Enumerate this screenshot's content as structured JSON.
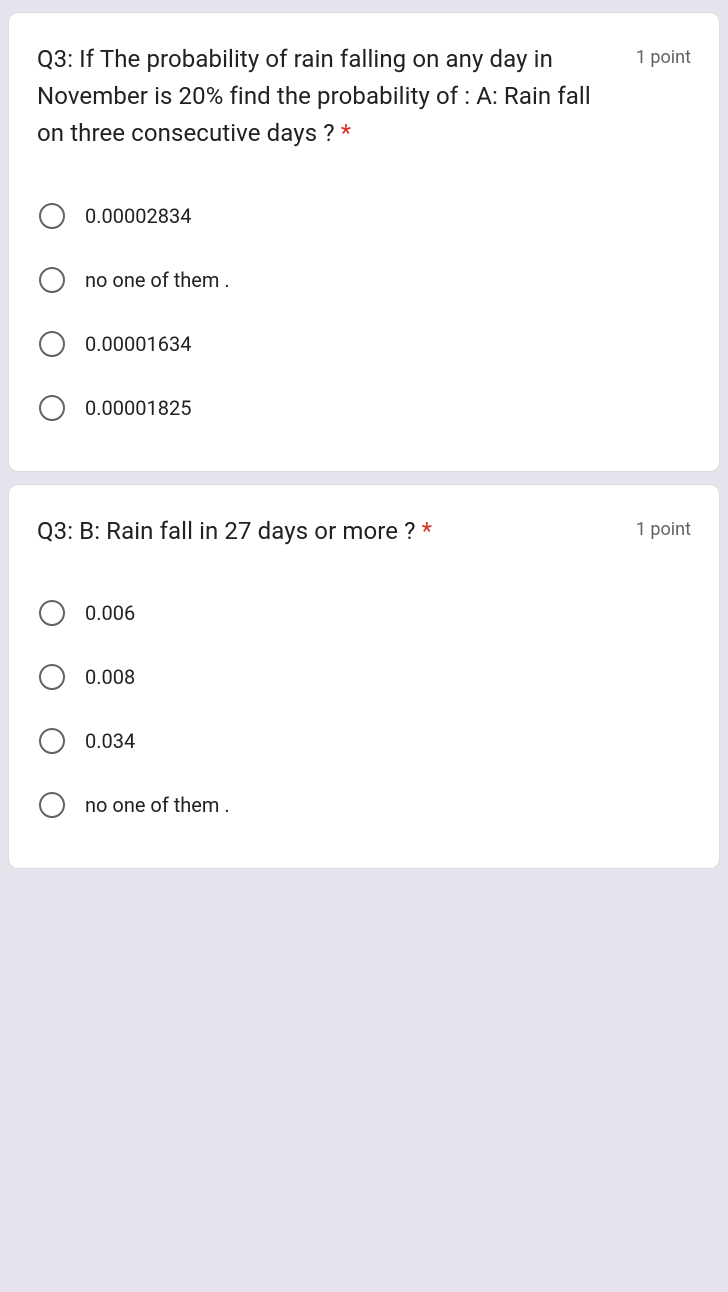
{
  "questions": [
    {
      "text": "Q3: If The probability of rain falling on any day in November is 20% find the probability of : A: Rain fall on three consecutive days ? ",
      "points": "1 point",
      "options": [
        {
          "label": "0.00002834"
        },
        {
          "label": "no one of them ."
        },
        {
          "label": "0.00001634"
        },
        {
          "label": "0.00001825"
        }
      ]
    },
    {
      "text": "Q3: B: Rain fall in 27 days or more ? ",
      "points": "1 point",
      "options": [
        {
          "label": "0.006"
        },
        {
          "label": "0.008"
        },
        {
          "label": "0.034"
        },
        {
          "label": "no one of them ."
        }
      ]
    }
  ],
  "required_marker": "*",
  "colors": {
    "background": "#e8e4ed",
    "card_bg": "#ffffff",
    "card_border": "#dadce0",
    "text": "#202124",
    "secondary_text": "#5f6368",
    "required": "#d93025",
    "radio_border": "#5f6368"
  },
  "typography": {
    "question_fontsize": 24,
    "points_fontsize": 18,
    "option_fontsize": 20
  }
}
